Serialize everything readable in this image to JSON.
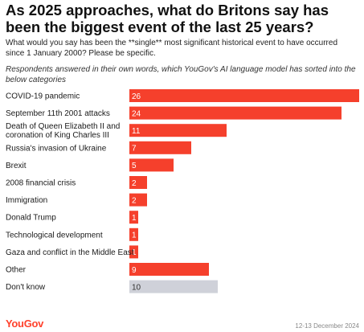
{
  "header": {
    "title": "As 2025 approaches, what do Britons say has been the biggest event of the last 25 years?",
    "subtitle": "What would you say has been the **single** most significant historical event to have occurred since 1 January 2000? Please be specific.",
    "note": "Respondents answered in their own words, which YouGov's AI language model has sorted into the below categories"
  },
  "chart_data": {
    "type": "bar",
    "orientation": "horizontal",
    "categories": [
      [
        "COVID-19 pandemic"
      ],
      [
        "September 11th 2001 attacks"
      ],
      [
        "Death of Queen Elizabeth II and",
        "coronation of King Charles III"
      ],
      [
        "Russia's invasion of Ukraine"
      ],
      [
        "Brexit"
      ],
      [
        "2008 financial crisis"
      ],
      [
        "Immigration"
      ],
      [
        "Donald Trump"
      ],
      [
        "Technological development"
      ],
      [
        "Gaza and conflict in the Middle East"
      ],
      [
        "Other"
      ],
      [
        "Don't know"
      ]
    ],
    "values": [
      26,
      24,
      11,
      7,
      5,
      2,
      2,
      1,
      1,
      1,
      9,
      10
    ],
    "bar_colors": [
      "#f5402c",
      "#f5402c",
      "#f5402c",
      "#f5402c",
      "#f5402c",
      "#f5402c",
      "#f5402c",
      "#f5402c",
      "#f5402c",
      "#f5402c",
      "#f5402c",
      "#cfd1d9"
    ],
    "xlim": [
      0,
      26
    ],
    "grid": false,
    "legend": "none",
    "data_labels": "inside-left"
  },
  "footer": {
    "logo": "YouGov",
    "date": "12-13 December 2024"
  }
}
